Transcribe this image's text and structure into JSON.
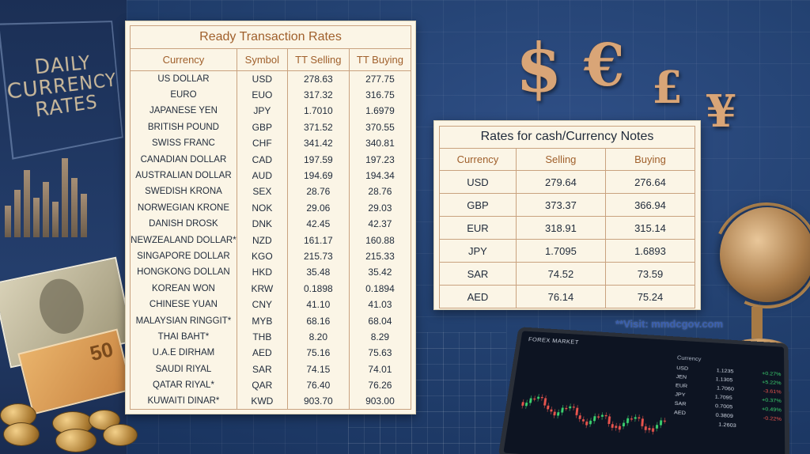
{
  "background": {
    "daily_title": [
      "DAILY",
      "CURRENCY",
      "RATES"
    ],
    "currency_symbols": [
      "$",
      "€",
      "£",
      "¥"
    ]
  },
  "tt_table": {
    "title": "Ready Transaction Rates",
    "columns": [
      "Currency",
      "Symbol",
      "TT Selling",
      "TT Buying"
    ],
    "rows": [
      [
        "US DOLLAR",
        "USD",
        "278.63",
        "277.75"
      ],
      [
        "EURO",
        "EUO",
        "317.32",
        "316.75"
      ],
      [
        "JAPANESE YEN",
        "JPY",
        "1.7010",
        "1.6979"
      ],
      [
        "BRITISH POUND",
        "GBP",
        "371.52",
        "370.55"
      ],
      [
        "SWISS FRANC",
        "CHF",
        "341.42",
        "340.81"
      ],
      [
        "CANADIAN DOLLAR",
        "CAD",
        "197.59",
        "197.23"
      ],
      [
        "AUSTRALIAN DOLLAR",
        "AUD",
        "194.69",
        "194.34"
      ],
      [
        "SWEDISH KRONA",
        "SEX",
        "28.76",
        "28.76"
      ],
      [
        "NORWEGIAN KRONE",
        "NOK",
        "29.06",
        "29.03"
      ],
      [
        "DANISH DROSK",
        "DNK",
        "42.45",
        "42.37"
      ],
      [
        "NEWZEALAND DOLLAR*",
        "NZD",
        "161.17",
        "160.88"
      ],
      [
        "SINGAPORE DOLLAR",
        "KGO",
        "215.73",
        "215.33"
      ],
      [
        "HONGKONG DOLLAN",
        "HKD",
        "35.48",
        "35.42"
      ],
      [
        "KOREAN WON",
        "KRW",
        "0.1898",
        "0.1894"
      ],
      [
        "CHINESE YUAN",
        "CNY",
        "41.10",
        "41.03"
      ],
      [
        "MALAYSIAN RINGGIT*",
        "MYB",
        "68.16",
        "68.04"
      ],
      [
        "THAI BAHT*",
        "THB",
        "8.20",
        "8.29"
      ],
      [
        "U.A.E DIRHAM",
        "AED",
        "75.16",
        "75.63"
      ],
      [
        "SAUDI RIYAL",
        "SAR",
        "74.15",
        "74.01"
      ],
      [
        "QATAR RIYAL*",
        "QAR",
        "76.40",
        "76.26"
      ],
      [
        "KUWAITI DINAR*",
        "KWD",
        "903.70",
        "903.00"
      ]
    ]
  },
  "cash_table": {
    "title": "Rates for cash/Currency Notes",
    "columns": [
      "Currency",
      "Selling",
      "Buying"
    ],
    "rows": [
      [
        "USD",
        "279.64",
        "276.64"
      ],
      [
        "GBP",
        "373.37",
        "366.94"
      ],
      [
        "EUR",
        "318.91",
        "315.14"
      ],
      [
        "JPY",
        "1.7095",
        "1.6893"
      ],
      [
        "SAR",
        "74.52",
        "73.59"
      ],
      [
        "AED",
        "76.14",
        "75.24"
      ]
    ]
  },
  "visit_text": "**Visit: mmdcgov.com",
  "tablet": {
    "title": "FOREX MARKET",
    "list_header": "Currency",
    "rows": [
      [
        "USD",
        "1.1235",
        "+0.27%"
      ],
      [
        "JEN",
        "1.1305",
        "+5.22%"
      ],
      [
        "EUR",
        "1.7060",
        "-3.61%"
      ],
      [
        "JPY",
        "1.7095",
        "+0.37%"
      ],
      [
        "SAR",
        "0.7005",
        "+0.49%"
      ],
      [
        "AED",
        "0.3809",
        "-0.22%"
      ],
      [
        "",
        "1.2603",
        ""
      ]
    ]
  },
  "colors": {
    "panel_bg": "#fbf5e6",
    "header_text": "#a0602c",
    "border": "#c9a27f",
    "background": "#22406f",
    "gold": "#d9a577",
    "link": "#3a5fb0"
  }
}
